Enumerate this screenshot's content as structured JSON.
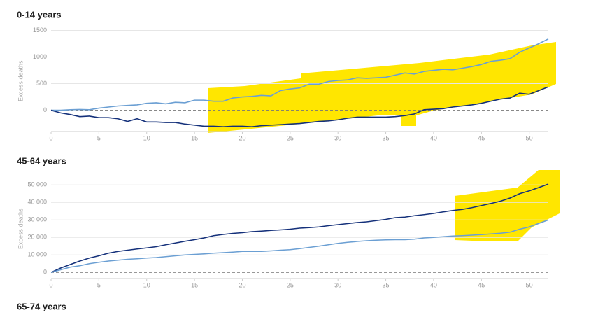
{
  "chart_data": [
    {
      "type": "line",
      "title": "0-14 years",
      "y_label": "Excess deaths",
      "x": [
        0,
        1,
        2,
        3,
        4,
        5,
        6,
        7,
        8,
        9,
        10,
        11,
        12,
        13,
        14,
        15,
        16,
        17,
        18,
        19,
        20,
        21,
        22,
        23,
        24,
        25,
        26,
        27,
        28,
        29,
        30,
        31,
        32,
        33,
        34,
        35,
        36,
        37,
        38,
        39,
        40,
        41,
        42,
        43,
        44,
        45,
        46,
        47,
        48,
        49,
        50,
        51,
        52
      ],
      "xlim": [
        0,
        52
      ],
      "xticks": [
        0,
        5,
        10,
        15,
        20,
        25,
        30,
        35,
        40,
        45,
        50
      ],
      "ylim": [
        -400,
        1500
      ],
      "yticks": [
        0,
        500,
        1000,
        1500
      ],
      "grid": true,
      "series": [
        {
          "color": "#6b9fd3",
          "values": [
            0,
            0,
            10,
            15,
            10,
            40,
            60,
            80,
            90,
            100,
            130,
            140,
            120,
            150,
            140,
            190,
            190,
            170,
            170,
            230,
            250,
            260,
            280,
            270,
            370,
            400,
            420,
            490,
            490,
            540,
            560,
            570,
            610,
            600,
            610,
            620,
            660,
            700,
            680,
            730,
            750,
            770,
            760,
            790,
            820,
            860,
            920,
            940,
            970,
            1090,
            1170,
            1250,
            1340
          ]
        },
        {
          "color": "#14307a",
          "values": [
            0,
            -50,
            -80,
            -120,
            -110,
            -140,
            -140,
            -160,
            -210,
            -160,
            -220,
            -220,
            -230,
            -230,
            -260,
            -280,
            -300,
            -300,
            -310,
            -300,
            -300,
            -310,
            -290,
            -280,
            -270,
            -260,
            -250,
            -230,
            -210,
            -200,
            -180,
            -150,
            -130,
            -130,
            -130,
            -130,
            -120,
            -100,
            -70,
            10,
            20,
            30,
            60,
            80,
            100,
            130,
            170,
            210,
            230,
            320,
            300,
            370,
            440
          ]
        }
      ]
    },
    {
      "type": "line",
      "title": "45-64 years",
      "y_label": "Excess deaths",
      "x": [
        0,
        1,
        2,
        3,
        4,
        5,
        6,
        7,
        8,
        9,
        10,
        11,
        12,
        13,
        14,
        15,
        16,
        17,
        18,
        19,
        20,
        21,
        22,
        23,
        24,
        25,
        26,
        27,
        28,
        29,
        30,
        31,
        32,
        33,
        34,
        35,
        36,
        37,
        38,
        39,
        40,
        41,
        42,
        43,
        44,
        45,
        46,
        47,
        48,
        49,
        50,
        51,
        52
      ],
      "xlim": [
        0,
        52
      ],
      "xticks": [
        0,
        5,
        10,
        15,
        20,
        25,
        30,
        35,
        40,
        45,
        50
      ],
      "ylim": [
        -3500,
        53500
      ],
      "yticks": [
        0,
        {
          "value": 10000,
          "label": "10 000"
        },
        {
          "value": 20000,
          "label": "20 000"
        },
        {
          "value": 30000,
          "label": "30 000"
        },
        {
          "value": 40000,
          "label": "40 000"
        },
        {
          "value": 50000,
          "label": "50 000"
        }
      ],
      "grid": true,
      "series": [
        {
          "color": "#14307a",
          "values": [
            0,
            2500,
            4500,
            6500,
            8200,
            9500,
            11000,
            12000,
            12700,
            13400,
            14000,
            14700,
            15800,
            16800,
            17800,
            18700,
            19700,
            21000,
            21700,
            22300,
            22700,
            23300,
            23600,
            24000,
            24300,
            24700,
            25300,
            25600,
            26000,
            26700,
            27300,
            27900,
            28500,
            28900,
            29600,
            30300,
            31300,
            31600,
            32400,
            33000,
            33700,
            34600,
            35400,
            36000,
            37000,
            38200,
            39400,
            40700,
            42500,
            45000,
            46600,
            48500,
            50500
          ]
        },
        {
          "color": "#6b9fd3",
          "values": [
            0,
            1500,
            3000,
            3800,
            5000,
            5800,
            6500,
            7000,
            7500,
            7800,
            8200,
            8500,
            9000,
            9500,
            10000,
            10300,
            10600,
            11000,
            11300,
            11600,
            12000,
            12000,
            12000,
            12300,
            12700,
            13000,
            13600,
            14300,
            15000,
            15800,
            16600,
            17200,
            17700,
            18100,
            18400,
            18600,
            18700,
            18700,
            19000,
            19700,
            20000,
            20400,
            20800,
            21000,
            21300,
            21600,
            22000,
            22400,
            23000,
            24700,
            26000,
            28000,
            30000
          ]
        }
      ]
    },
    {
      "type": "line",
      "title": "65-74 years"
    }
  ]
}
